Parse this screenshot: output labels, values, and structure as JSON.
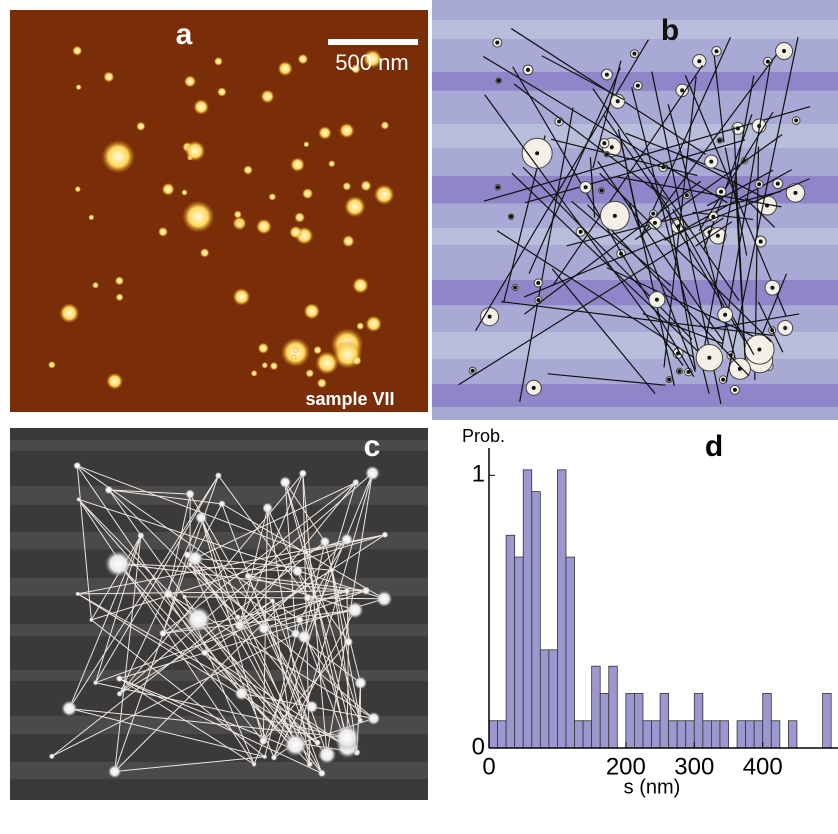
{
  "panels": {
    "a": {
      "label": "a",
      "scale_bar": "500 nm",
      "sample": "sample VII"
    },
    "b": {
      "label": "b"
    },
    "c": {
      "label": "c"
    }
  },
  "chart_data": {
    "type": "histogram",
    "title": "d",
    "ylabel": "Prob.",
    "xlabel": "s (nm)",
    "color": "#9c98cf",
    "bins": [
      0,
      12.5,
      25,
      37.5,
      50,
      62.5,
      75,
      87.5,
      100,
      112.5,
      125,
      137.5,
      150,
      162.5,
      175,
      187.5,
      200,
      212.5,
      225,
      237.5,
      250,
      262.5,
      275,
      287.5,
      300,
      312.5,
      325,
      337.5,
      350,
      362.5,
      375,
      387.5,
      400,
      412.5,
      425,
      437.5,
      450,
      462.5,
      475,
      487.5,
      500
    ],
    "values": [
      0.1,
      0.1,
      0.78,
      0.7,
      1.02,
      0.94,
      0.36,
      0.36,
      1.02,
      0.7,
      0.1,
      0.1,
      0.3,
      0.2,
      0.3,
      0,
      0.2,
      0.2,
      0.1,
      0.1,
      0.2,
      0.1,
      0.1,
      0.1,
      0.2,
      0.1,
      0.1,
      0.1,
      0,
      0.1,
      0.1,
      0.1,
      0.2,
      0.1,
      0,
      0.1,
      0,
      0,
      0,
      0.2
    ],
    "xlim": [
      0,
      510
    ],
    "ylim": [
      0,
      1.1
    ],
    "xticks": [
      0,
      200,
      300,
      400
    ],
    "yticks": [
      0,
      1
    ]
  }
}
